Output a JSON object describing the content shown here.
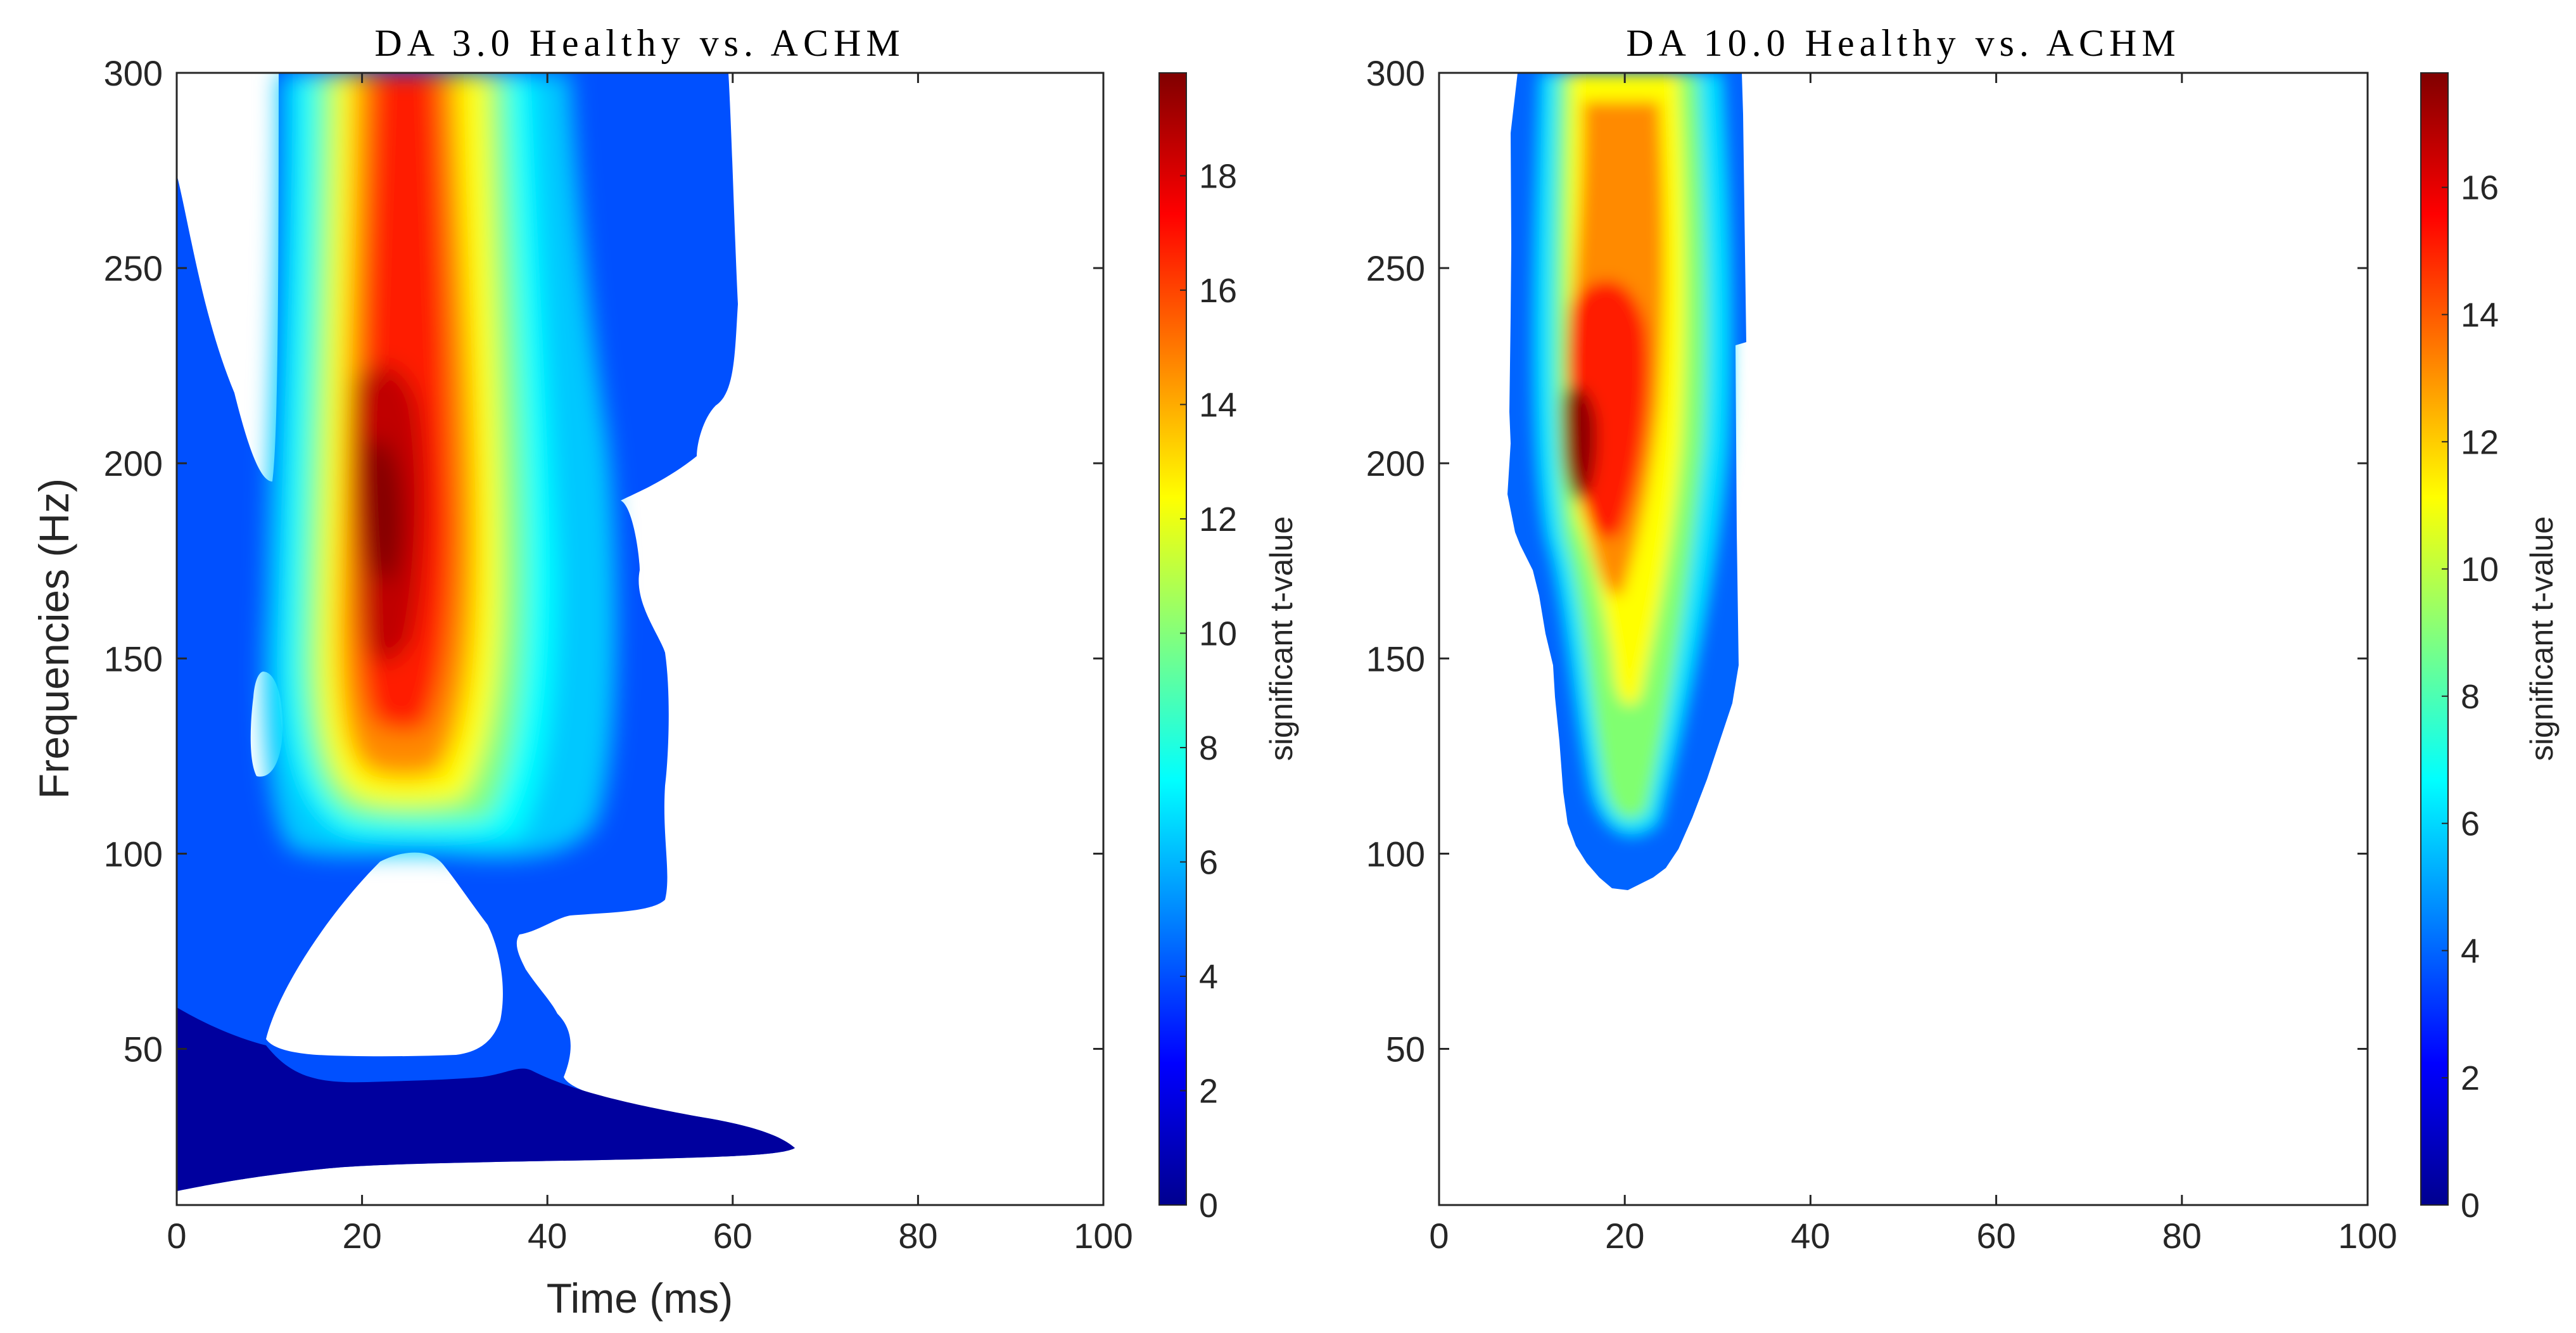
{
  "chart_data": [
    {
      "type": "heatmap",
      "title": "DA 3.0 Healthy vs. ACHM",
      "xlabel": "Time (ms)",
      "ylabel": "Frequencies (Hz)",
      "xlim": [
        0,
        100
      ],
      "ylim": [
        10,
        300
      ],
      "xticks": [
        0,
        20,
        40,
        60,
        80,
        100
      ],
      "yticks": [
        50,
        100,
        150,
        200,
        250,
        300
      ],
      "colormap": "jet",
      "colorbar": {
        "label": "significant t-value",
        "range": [
          0,
          19.8
        ],
        "ticks": [
          0,
          2,
          4,
          6,
          8,
          10,
          12,
          14,
          16,
          18
        ]
      },
      "peak": {
        "t_ms": 20,
        "f_hz": 190,
        "t_value": 19.8
      },
      "description_regions": [
        {
          "kind": "ridge",
          "t_range_ms": [
            10,
            35
          ],
          "f_range_hz": [
            100,
            300
          ],
          "t_value_max": 19.8
        },
        {
          "kind": "low_freq_band",
          "t_range_ms": [
            0,
            67
          ],
          "f_range_hz": [
            12,
            55
          ],
          "t_value": 0.5
        }
      ]
    },
    {
      "type": "heatmap",
      "title": "DA 10.0 Healthy vs. ACHM",
      "xlabel": "",
      "ylabel": "",
      "xlim": [
        0,
        100
      ],
      "ylim": [
        10,
        300
      ],
      "xticks": [
        0,
        20,
        40,
        60,
        80,
        100
      ],
      "yticks": [
        50,
        100,
        150,
        200,
        250,
        300
      ],
      "colormap": "jet",
      "colorbar": {
        "label": "significant t-value",
        "range": [
          0,
          17.8
        ],
        "ticks": [
          0,
          2,
          4,
          6,
          8,
          10,
          12,
          14,
          16
        ]
      },
      "peak": {
        "t_ms": 14,
        "f_hz": 200,
        "t_value": 17.8
      },
      "description_regions": [
        {
          "kind": "ridge",
          "t_range_ms": [
            8,
            33
          ],
          "f_range_hz": [
            90,
            300
          ],
          "t_value_max": 17.8
        }
      ]
    }
  ]
}
